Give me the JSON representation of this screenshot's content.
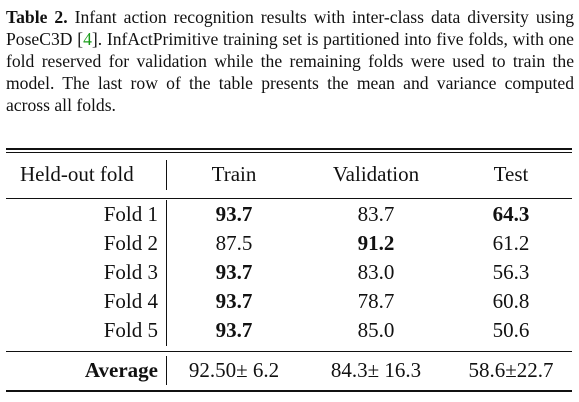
{
  "caption": {
    "label": "Table 2.",
    "text_before_ref": " Infant action recognition results with inter-class data diversity using PoseC3D [",
    "ref": "4",
    "text_after_ref": "]. InfActPrimitive training set is partitioned into five folds, with one fold reserved for validation while the remaining folds were used to train the model. The last row of the table presents the mean and variance computed across all folds."
  },
  "table": {
    "headers": [
      "Held-out fold",
      "Train",
      "Validation",
      "Test"
    ],
    "rows": [
      {
        "fold": "Fold 1",
        "train": "93.7",
        "validation": "83.7",
        "test": "64.3",
        "bold": [
          true,
          false,
          true
        ]
      },
      {
        "fold": "Fold 2",
        "train": "87.5",
        "validation": "91.2",
        "test": "61.2",
        "bold": [
          false,
          true,
          false
        ]
      },
      {
        "fold": "Fold 3",
        "train": "93.7",
        "validation": "83.0",
        "test": "56.3",
        "bold": [
          true,
          false,
          false
        ]
      },
      {
        "fold": "Fold 4",
        "train": "93.7",
        "validation": "78.7",
        "test": "60.8",
        "bold": [
          true,
          false,
          false
        ]
      },
      {
        "fold": "Fold 5",
        "train": "93.7",
        "validation": "85.0",
        "test": "50.6",
        "bold": [
          true,
          false,
          false
        ]
      }
    ],
    "average": {
      "label": "Average",
      "train": "92.50± 6.2",
      "validation": "84.3± 16.3",
      "test": "58.6±22.7"
    }
  }
}
